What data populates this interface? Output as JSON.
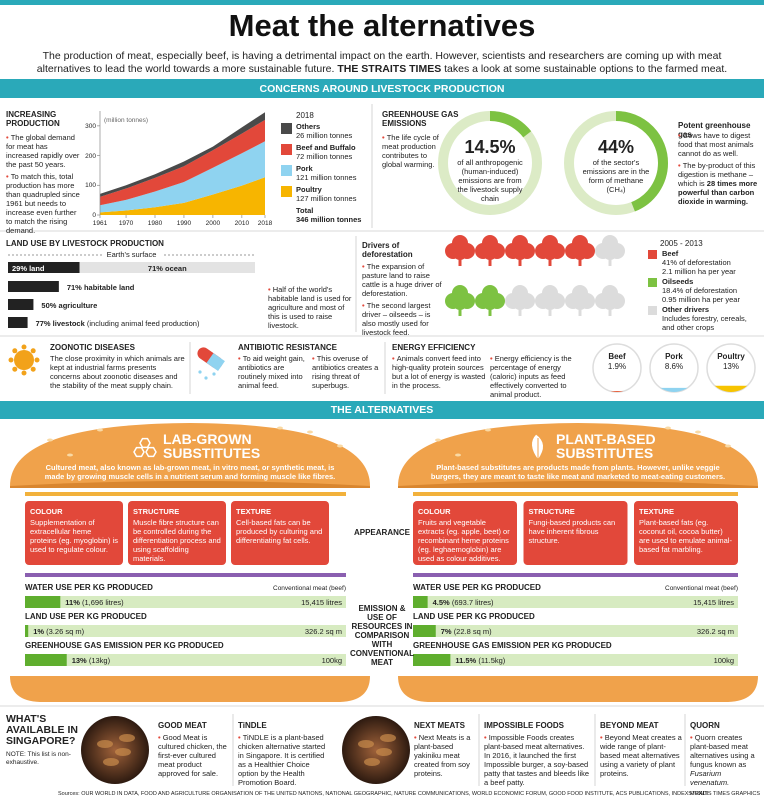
{
  "header": {
    "title": "Meat the alternatives",
    "intro": "The production of meat, especially beef, is having a detrimental impact on the earth. However, scientists and researchers are coming up with meat alternatives to lead the world towards a more sustainable future.",
    "intro_bold": "THE STRAITS TIMES",
    "intro_end": "takes a look at some sustainable options to the farmed meat."
  },
  "concerns": {
    "banner": "CONCERNS AROUND LIVESTOCK PRODUCTION",
    "production": {
      "title": "INCREASING PRODUCTION",
      "bullets": [
        "The global demand for meat has increased rapidly over the past 50 years.",
        "To match this, total production has more than quadrupled since 1961 but needs to increase even further to match the rising demand."
      ],
      "chart": {
        "type": "area",
        "unit": "(million tonnes)",
        "x": [
          1961,
          1970,
          1980,
          1990,
          2000,
          2010,
          2018
        ],
        "xlim": [
          1961,
          2018
        ],
        "xticks": [
          1961,
          1970,
          1980,
          1990,
          2000,
          2010,
          2018
        ],
        "ylim": [
          0,
          350
        ],
        "yticks": [
          0,
          100,
          200,
          300
        ],
        "legend_year": "2018",
        "series": [
          {
            "name": "Poultry",
            "detail": "127 million tonnes",
            "color": "#f7b500",
            "values": [
              9,
              15,
              26,
              41,
              69,
              99,
              127
            ]
          },
          {
            "name": "Pork",
            "detail": "121 million tonnes",
            "color": "#8fd3f0",
            "values": [
              24,
              36,
              53,
              70,
              90,
              109,
              121
            ]
          },
          {
            "name": "Beef and Buffalo",
            "detail": "72 million tonnes",
            "color": "#e2483a",
            "values": [
              28,
              38,
              46,
              53,
              59,
              66,
              72
            ]
          },
          {
            "name": "Others",
            "detail": "26 million tonnes",
            "color": "#4a4a4a",
            "values": [
              10,
              11,
              12,
              16,
              12,
              21,
              26
            ]
          }
        ],
        "total": "Total",
        "total_detail": "346 million tonnes"
      }
    },
    "ghg": {
      "title": "GREENHOUSE GAS EMISSIONS",
      "bullets": [
        "The life cycle of meat production contributes to global warming."
      ],
      "donuts": [
        {
          "value": 14.5,
          "label": "14.5%",
          "text": "of all anthropogenic (human-induced) emissions are from the livestock supply chain"
        },
        {
          "value": 44,
          "label": "44%",
          "text": "of the sector's emissions are in the form of methane (CH₄)"
        }
      ],
      "potent": {
        "title": "Potent greenhouse gas",
        "bullets": [
          {
            "text": "Cows have to digest food that most animals cannot do as well."
          },
          {
            "text": "The by-product of this digestion is methane – which is",
            "bold": "28 times more powerful than carbon dioxide in warming."
          }
        ]
      }
    },
    "land_use": {
      "title": "LAND USE BY LIVESTOCK PRODUCTION",
      "earth": "Earth's surface",
      "land": {
        "value": 29,
        "label": "29% land"
      },
      "ocean": {
        "value": 71,
        "label": "71% ocean"
      },
      "habitable": {
        "value": 71,
        "label": "71% habitable land"
      },
      "agriculture": {
        "value": 50,
        "label": "50% agriculture"
      },
      "livestock": {
        "value": 77,
        "label": "77% livestock",
        "note": "(including animal feed production)"
      },
      "note": "Half of the world's habitable land is used for agriculture and most of this is used to raise livestock."
    },
    "deforestation": {
      "title": "Drivers of deforestation",
      "bullets": [
        "The expansion of pasture land to raise cattle is a huge driver of deforestation.",
        "The second largest driver – oilseeds – is also mostly used for livestock feed."
      ],
      "period": "2005 - 2013",
      "drivers": [
        {
          "name": "Beef",
          "value": 41,
          "color": "#e2483a",
          "detail1": "41% of deforestation",
          "detail2": "2.1 million ha per year"
        },
        {
          "name": "Oilseeds",
          "value": 18.4,
          "color": "#7dc242",
          "detail1": "18.4% of deforestation",
          "detail2": "0.95 million ha per year"
        },
        {
          "name": "Other drivers",
          "color": "#dcdcdc",
          "detail1": "Includes forestry, cereals,",
          "detail2": "and other crops"
        }
      ]
    },
    "zoonotic": {
      "title": "ZOONOTIC DISEASES",
      "text": "The close proximity in which animals are kept at industrial farms presents concerns about zoonotic diseases and the stability of the meat supply chain."
    },
    "antibiotic": {
      "title": "ANTIBIOTIC RESISTANCE",
      "bullets": [
        "To aid weight gain, antibiotics are routinely mixed into animal feed.",
        "This overuse of antibiotics creates a rising threat of superbugs."
      ]
    },
    "energy": {
      "title": "ENERGY EFFICIENCY",
      "bullets": [
        "Animals convert feed into high-quality protein sources but a lot of energy is wasted in the process.",
        "Energy efficiency is the percentage of energy (caloric) inputs as feed effectively converted to animal product."
      ],
      "items": [
        {
          "name": "Beef",
          "value": 1.9,
          "label": "1.9%",
          "color": "#e8552f"
        },
        {
          "name": "Pork",
          "value": 8.6,
          "label": "8.6%",
          "color": "#8fd3f0"
        },
        {
          "name": "Poultry",
          "value": 13,
          "label": "13%",
          "color": "#f7c400"
        }
      ]
    }
  },
  "alternatives": {
    "banner": "THE ALTERNATIVES",
    "appearance": "APPEARANCE",
    "emission": "EMISSION & USE OF RESOURCES IN COMPARISON WITH CONVENTIONAL MEAT",
    "conventional": "Conventional meat (beef)",
    "metrics": [
      "WATER USE PER KG PRODUCED",
      "LAND USE PER KG PRODUCED",
      "GREENHOUSE GAS EMISSION PER KG PRODUCED"
    ],
    "beef": [
      "15,415 litres",
      "326.2 sq m",
      "100kg"
    ],
    "options": [
      {
        "title": [
          "LAB-GROWN",
          "SUBSTITUTES"
        ],
        "description": "Cultured meat, also known as lab-grown meat, in vitro meat, or synthetic meat, is made by growing muscle cells in a nutrient serum and forming muscle like fibres.",
        "traits": [
          {
            "title": "COLOUR",
            "text": "Supplementation of extracellular heme proteins (eg. myoglobin) is used to regulate colour."
          },
          {
            "title": "STRUCTURE",
            "text": "Muscle fibre structure can be controlled during the differentiation process and using scaffolding materials."
          },
          {
            "title": "TEXTURE",
            "text": "Cell-based fats can be produced by culturing and differentiating fat cells."
          }
        ],
        "usage": [
          {
            "value": 11,
            "label": "11%",
            "detail": "(1,696 litres)"
          },
          {
            "value": 1,
            "label": "1%",
            "detail": "(3.26 sq m)"
          },
          {
            "value": 13,
            "label": "13%",
            "detail": "(13kg)"
          }
        ]
      },
      {
        "title": [
          "PLANT-BASED",
          "SUBSTITUTES"
        ],
        "description": "Plant-based substitutes are products made from plants. However, unlike veggie burgers, they are meant to taste like meat and marketed to meat-eating customers.",
        "traits": [
          {
            "title": "COLOUR",
            "text": "Fruits and vegetable extracts (eg. apple, beet) or recombinant heme proteins (eg. leghaemoglobin) are used as colour additives."
          },
          {
            "title": "STRUCTURE",
            "text": "Fungi-based products can have inherent fibrous structure."
          },
          {
            "title": "TEXTURE",
            "text": "Plant-based fats (eg. coconut oil, cocoa butter) are used to emulate animal-based fat marbling."
          }
        ],
        "usage": [
          {
            "value": 4.5,
            "label": "4.5%",
            "detail": "(693.7 litres)"
          },
          {
            "value": 7,
            "label": "7%",
            "detail": "(22.8 sq m)"
          },
          {
            "value": 11.5,
            "label": "11.5%",
            "detail": "(11.5kg)"
          }
        ]
      }
    ]
  },
  "available": {
    "title": "WHAT'S AVAILABLE IN SINGAPORE?",
    "note": "NOTE: This list is non-exhaustive.",
    "brands": [
      {
        "name": "GOOD MEAT",
        "text": "Good Meat is cultured chicken, the first-ever cultured meat product approved for sale."
      },
      {
        "name": "TiNDLE",
        "text": "TiNDLE is a plant-based chicken alternative started in Singapore. It is certified as a Healthier Choice option by the Health Promotion Board."
      },
      {
        "name": "NEXT MEATS",
        "text": "Next Meats is a plant-based yakiniku meat created from soy proteins."
      },
      {
        "name": "IMPOSSIBLE FOODS",
        "text": "Impossible Foods creates plant-based meat alternatives. In 2016, it launched the first Impossible burger, a soy-based patty that tastes and bleeds like a beef patty."
      },
      {
        "name": "BEYOND MEAT",
        "text": "Beyond Meat creates a wide range of plant-based meat alternatives using a variety of plant proteins."
      },
      {
        "name": "QUORN",
        "text": "Quorn creates plant-based meat alternatives using a fungus known as",
        "italic": "Fusarium venenatum."
      }
    ]
  },
  "footer": {
    "sources": "Sources: OUR WORLD IN DATA, FOOD AND AGRICULTURE ORGANISATION OF THE UNITED NATIONS, NATIONAL GEOGRAPHIC, NATURE COMMUNICATIONS, WORLD ECONOMIC FORUM, GOOD FOOD INSTITUTE, ACS PUBLICATIONS, INDEX MUNDI",
    "credit": "STRAITS TIMES GRAPHICS"
  }
}
